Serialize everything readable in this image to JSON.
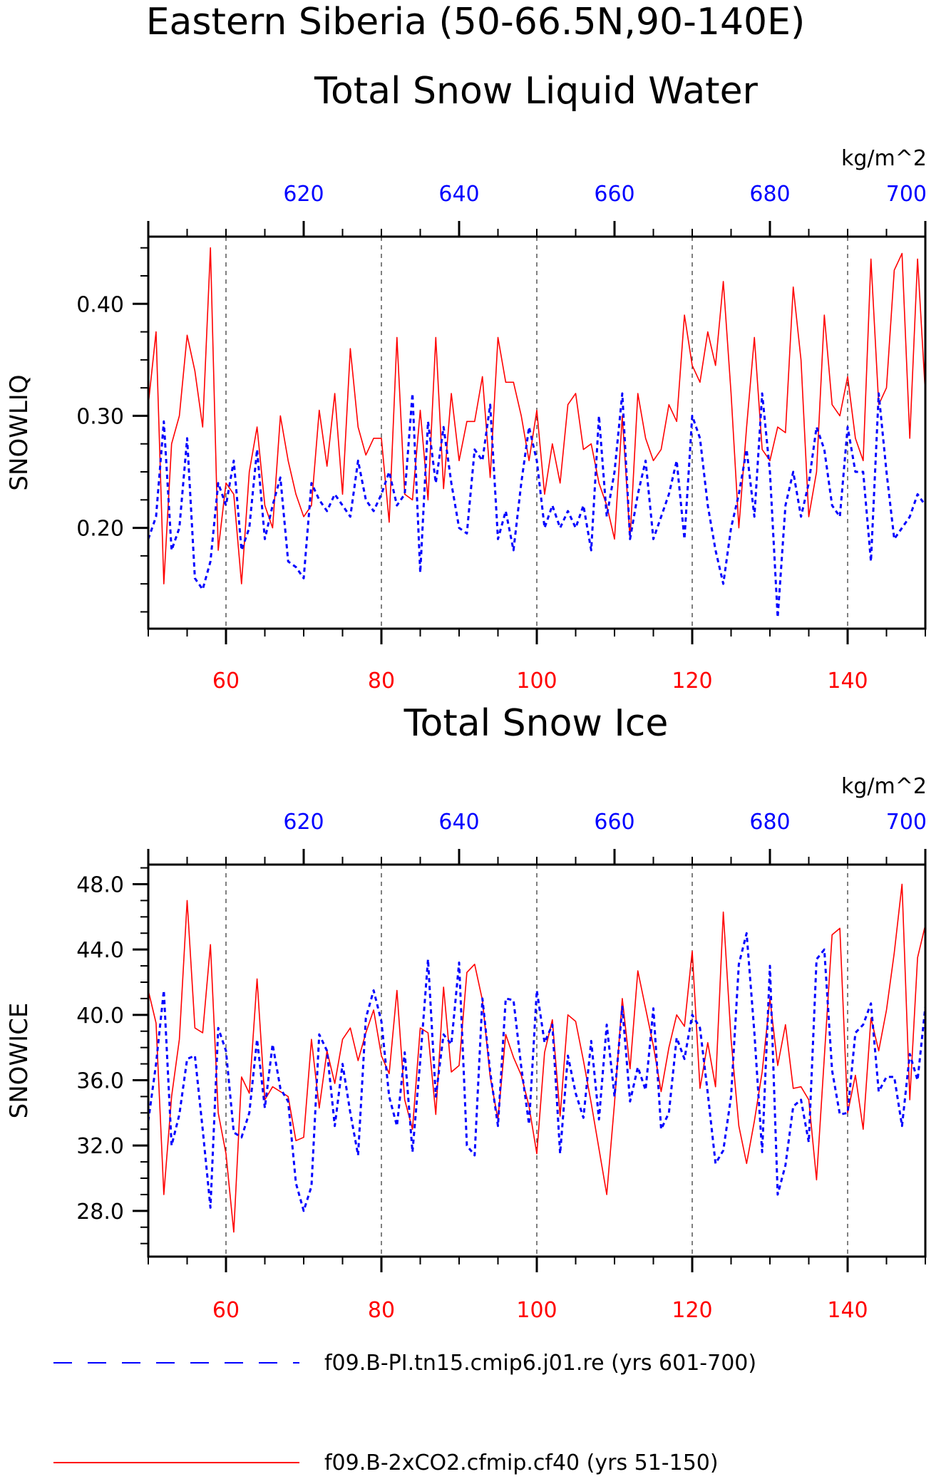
{
  "titles": {
    "main_line1": "Eastern Siberia (50-66.5N,90-140E)",
    "panel1": "Total Snow Liquid Water",
    "panel2": "Total Snow Ice"
  },
  "colors": {
    "red_series": "#ff0000",
    "blue_series": "#0000ff",
    "axes": "#000000",
    "grid": "#000000"
  },
  "legend": {
    "placement": "bottom",
    "items": [
      {
        "label": "f09.B-PI.tn15.cmip6.j01.re (yrs 601-700)",
        "color": "#0000ff",
        "style": "dashed"
      },
      {
        "label": "f09.B-2xCO2.cfmip.cf40 (yrs 51-150)",
        "color": "#ff0000",
        "style": "solid"
      }
    ]
  },
  "chart_data": [
    {
      "type": "line",
      "title": "Total Snow Liquid Water",
      "ylabel": "SNOWLIQ",
      "top_units": "kg/m^2",
      "x_bottom_range": [
        50,
        150
      ],
      "x_top_range": [
        600,
        700
      ],
      "ylim": [
        0.11,
        0.46
      ],
      "yticks": [
        0.2,
        0.3,
        0.4
      ],
      "ytick_labels": [
        "0.20",
        "0.30",
        "0.40"
      ],
      "x_bottom_ticks": [
        60,
        80,
        100,
        120,
        140
      ],
      "x_top_ticks": [
        620,
        640,
        660,
        680,
        700
      ],
      "vertical_gridlines": [
        60,
        80,
        100,
        120,
        140
      ],
      "grid": true,
      "series": [
        {
          "name": "f09.B-2xCO2.cfmip.cf40 (yrs 51-150)",
          "color": "#ff0000",
          "style": "solid",
          "x_axis": "bottom",
          "x": [
            50,
            51,
            52,
            53,
            54,
            55,
            56,
            57,
            58,
            59,
            60,
            61,
            62,
            63,
            64,
            65,
            66,
            67,
            68,
            69,
            70,
            71,
            72,
            73,
            74,
            75,
            76,
            77,
            78,
            79,
            80,
            81,
            82,
            83,
            84,
            85,
            86,
            87,
            88,
            89,
            90,
            91,
            92,
            93,
            94,
            95,
            96,
            97,
            98,
            99,
            100,
            101,
            102,
            103,
            104,
            105,
            106,
            107,
            108,
            109,
            110,
            111,
            112,
            113,
            114,
            115,
            116,
            117,
            118,
            119,
            120,
            121,
            122,
            123,
            124,
            125,
            126,
            127,
            128,
            129,
            130,
            131,
            132,
            133,
            134,
            135,
            136,
            137,
            138,
            139,
            140,
            141,
            142,
            143,
            144,
            145,
            146,
            147,
            148,
            149,
            150
          ],
          "values": [
            0.31,
            0.375,
            0.15,
            0.275,
            0.3,
            0.372,
            0.34,
            0.29,
            0.45,
            0.18,
            0.24,
            0.23,
            0.15,
            0.25,
            0.29,
            0.22,
            0.2,
            0.3,
            0.26,
            0.23,
            0.21,
            0.22,
            0.305,
            0.255,
            0.32,
            0.23,
            0.36,
            0.29,
            0.265,
            0.28,
            0.28,
            0.205,
            0.37,
            0.23,
            0.225,
            0.305,
            0.225,
            0.37,
            0.235,
            0.32,
            0.26,
            0.295,
            0.295,
            0.335,
            0.245,
            0.37,
            0.33,
            0.33,
            0.3,
            0.26,
            0.305,
            0.23,
            0.275,
            0.24,
            0.31,
            0.32,
            0.27,
            0.275,
            0.24,
            0.22,
            0.19,
            0.3,
            0.19,
            0.32,
            0.28,
            0.26,
            0.27,
            0.31,
            0.295,
            0.39,
            0.345,
            0.33,
            0.375,
            0.345,
            0.42,
            0.32,
            0.2,
            0.29,
            0.37,
            0.27,
            0.26,
            0.29,
            0.285,
            0.415,
            0.35,
            0.21,
            0.25,
            0.39,
            0.31,
            0.3,
            0.335,
            0.28,
            0.26,
            0.44,
            0.31,
            0.325,
            0.43,
            0.445,
            0.28,
            0.44,
            0.32
          ]
        },
        {
          "name": "f09.B-PI.tn15.cmip6.j01.re (yrs 601-700)",
          "color": "#0000ff",
          "style": "dashed",
          "x_axis": "top",
          "x": [
            600,
            601,
            602,
            603,
            604,
            605,
            606,
            607,
            608,
            609,
            610,
            611,
            612,
            613,
            614,
            615,
            616,
            617,
            618,
            619,
            620,
            621,
            622,
            623,
            624,
            625,
            626,
            627,
            628,
            629,
            630,
            631,
            632,
            633,
            634,
            635,
            636,
            637,
            638,
            639,
            640,
            641,
            642,
            643,
            644,
            645,
            646,
            647,
            648,
            649,
            650,
            651,
            652,
            653,
            654,
            655,
            656,
            657,
            658,
            659,
            660,
            661,
            662,
            663,
            664,
            665,
            666,
            667,
            668,
            669,
            670,
            671,
            672,
            673,
            674,
            675,
            676,
            677,
            678,
            679,
            680,
            681,
            682,
            683,
            684,
            685,
            686,
            687,
            688,
            689,
            690,
            691,
            692,
            693,
            694,
            695,
            696,
            697,
            698,
            699,
            700
          ],
          "values": [
            0.19,
            0.21,
            0.295,
            0.18,
            0.2,
            0.28,
            0.155,
            0.145,
            0.17,
            0.24,
            0.22,
            0.26,
            0.18,
            0.2,
            0.27,
            0.19,
            0.22,
            0.245,
            0.17,
            0.165,
            0.155,
            0.24,
            0.225,
            0.215,
            0.23,
            0.22,
            0.21,
            0.26,
            0.225,
            0.215,
            0.23,
            0.25,
            0.22,
            0.23,
            0.32,
            0.16,
            0.295,
            0.24,
            0.29,
            0.24,
            0.2,
            0.195,
            0.27,
            0.26,
            0.31,
            0.19,
            0.215,
            0.18,
            0.24,
            0.29,
            0.26,
            0.2,
            0.22,
            0.2,
            0.215,
            0.2,
            0.22,
            0.18,
            0.3,
            0.21,
            0.25,
            0.32,
            0.19,
            0.23,
            0.26,
            0.19,
            0.21,
            0.23,
            0.26,
            0.19,
            0.3,
            0.28,
            0.22,
            0.18,
            0.15,
            0.2,
            0.23,
            0.27,
            0.21,
            0.32,
            0.25,
            0.12,
            0.22,
            0.25,
            0.21,
            0.24,
            0.29,
            0.27,
            0.22,
            0.21,
            0.29,
            0.25,
            0.25,
            0.17,
            0.32,
            0.25,
            0.19,
            0.2,
            0.21,
            0.23,
            0.22
          ]
        }
      ]
    },
    {
      "type": "line",
      "title": "Total Snow Ice",
      "ylabel": "SNOWICE",
      "top_units": "kg/m^2",
      "x_bottom_range": [
        50,
        150
      ],
      "x_top_range": [
        600,
        700
      ],
      "ylim": [
        25.2,
        49.2
      ],
      "yticks": [
        28.0,
        32.0,
        36.0,
        40.0,
        44.0,
        48.0
      ],
      "ytick_labels": [
        "28.0",
        "32.0",
        "36.0",
        "40.0",
        "44.0",
        "48.0"
      ],
      "x_bottom_ticks": [
        60,
        80,
        100,
        120,
        140
      ],
      "x_top_ticks": [
        620,
        640,
        660,
        680,
        700
      ],
      "vertical_gridlines": [
        60,
        80,
        100,
        120,
        140
      ],
      "grid": true,
      "series": [
        {
          "name": "f09.B-2xCO2.cfmip.cf40 (yrs 51-150)",
          "color": "#ff0000",
          "style": "solid",
          "x_axis": "bottom",
          "x": [
            50,
            51,
            52,
            53,
            54,
            55,
            56,
            57,
            58,
            59,
            60,
            61,
            62,
            63,
            64,
            65,
            66,
            67,
            68,
            69,
            70,
            71,
            72,
            73,
            74,
            75,
            76,
            77,
            78,
            79,
            80,
            81,
            82,
            83,
            84,
            85,
            86,
            87,
            88,
            89,
            90,
            91,
            92,
            93,
            94,
            95,
            96,
            97,
            98,
            99,
            100,
            101,
            102,
            103,
            104,
            105,
            106,
            107,
            108,
            109,
            110,
            111,
            112,
            113,
            114,
            115,
            116,
            117,
            118,
            119,
            120,
            121,
            122,
            123,
            124,
            125,
            126,
            127,
            128,
            129,
            130,
            131,
            132,
            133,
            134,
            135,
            136,
            137,
            138,
            139,
            140,
            141,
            142,
            143,
            144,
            145,
            146,
            147,
            148,
            149,
            150
          ],
          "values": [
            41.5,
            39.5,
            29.0,
            35.0,
            38.5,
            47.0,
            39.2,
            38.9,
            44.3,
            34.0,
            31.5,
            26.7,
            36.2,
            35.2,
            42.2,
            34.8,
            35.6,
            35.3,
            35.0,
            32.3,
            32.5,
            38.5,
            34.3,
            37.8,
            35.8,
            38.5,
            39.2,
            37.2,
            38.9,
            40.3,
            37.5,
            36.4,
            41.5,
            34.8,
            33.0,
            39.2,
            38.9,
            33.9,
            41.7,
            36.5,
            36.9,
            42.6,
            43.1,
            40.9,
            36.2,
            33.6,
            38.8,
            37.4,
            36.3,
            34.4,
            31.5,
            37.7,
            39.7,
            33.8,
            40.0,
            39.6,
            37.2,
            34.6,
            31.8,
            29.0,
            34.6,
            41.0,
            36.7,
            42.7,
            40.4,
            38.1,
            35.3,
            38.0,
            40.0,
            39.3,
            43.9,
            35.5,
            38.3,
            35.6,
            46.3,
            38.5,
            33.2,
            30.9,
            33.5,
            36.5,
            41.0,
            36.9,
            39.4,
            35.5,
            35.6,
            34.8,
            29.9,
            37.4,
            44.9,
            45.3,
            34.0,
            36.3,
            33.0,
            39.8,
            37.8,
            40.3,
            43.8,
            48.0,
            34.8,
            43.5,
            45.5
          ]
        },
        {
          "name": "f09.B-PI.tn15.cmip6.j01.re (yrs 601-700)",
          "color": "#0000ff",
          "style": "dashed",
          "x_axis": "top",
          "x": [
            600,
            601,
            602,
            603,
            604,
            605,
            606,
            607,
            608,
            609,
            610,
            611,
            612,
            613,
            614,
            615,
            616,
            617,
            618,
            619,
            620,
            621,
            622,
            623,
            624,
            625,
            626,
            627,
            628,
            629,
            630,
            631,
            632,
            633,
            634,
            635,
            636,
            637,
            638,
            639,
            640,
            641,
            642,
            643,
            644,
            645,
            646,
            647,
            648,
            649,
            650,
            651,
            652,
            653,
            654,
            655,
            656,
            657,
            658,
            659,
            660,
            661,
            662,
            663,
            664,
            665,
            666,
            667,
            668,
            669,
            670,
            671,
            672,
            673,
            674,
            675,
            676,
            677,
            678,
            679,
            680,
            681,
            682,
            683,
            684,
            685,
            686,
            687,
            688,
            689,
            690,
            691,
            692,
            693,
            694,
            695,
            696,
            697,
            698,
            699,
            700
          ],
          "values": [
            33.5,
            37.0,
            41.5,
            32.0,
            33.9,
            37.3,
            37.5,
            33.0,
            28.2,
            39.2,
            37.8,
            32.8,
            32.5,
            34.0,
            38.5,
            34.3,
            38.2,
            35.5,
            34.7,
            29.7,
            28.0,
            29.5,
            38.8,
            37.8,
            33.2,
            37.0,
            34.0,
            31.4,
            39.8,
            41.5,
            39.6,
            35.0,
            33.2,
            37.7,
            31.6,
            37.2,
            43.4,
            35.0,
            38.8,
            38.2,
            43.2,
            32.0,
            31.4,
            41.0,
            36.5,
            33.2,
            41.0,
            40.9,
            36.8,
            33.3,
            41.5,
            38.3,
            39.4,
            31.5,
            37.5,
            35.2,
            33.7,
            38.4,
            33.6,
            39.4,
            35.0,
            40.5,
            34.7,
            36.8,
            35.4,
            40.4,
            33.0,
            34.0,
            38.6,
            37.3,
            40.0,
            39.2,
            35.2,
            30.9,
            31.7,
            35.0,
            43.1,
            45.0,
            38.9,
            31.6,
            43.0,
            29.0,
            30.8,
            34.4,
            34.8,
            32.2,
            43.4,
            44.0,
            36.6,
            33.9,
            34.0,
            38.9,
            39.4,
            40.7,
            35.3,
            36.2,
            36.2,
            33.2,
            37.6,
            36.0,
            40.5
          ]
        }
      ]
    }
  ]
}
